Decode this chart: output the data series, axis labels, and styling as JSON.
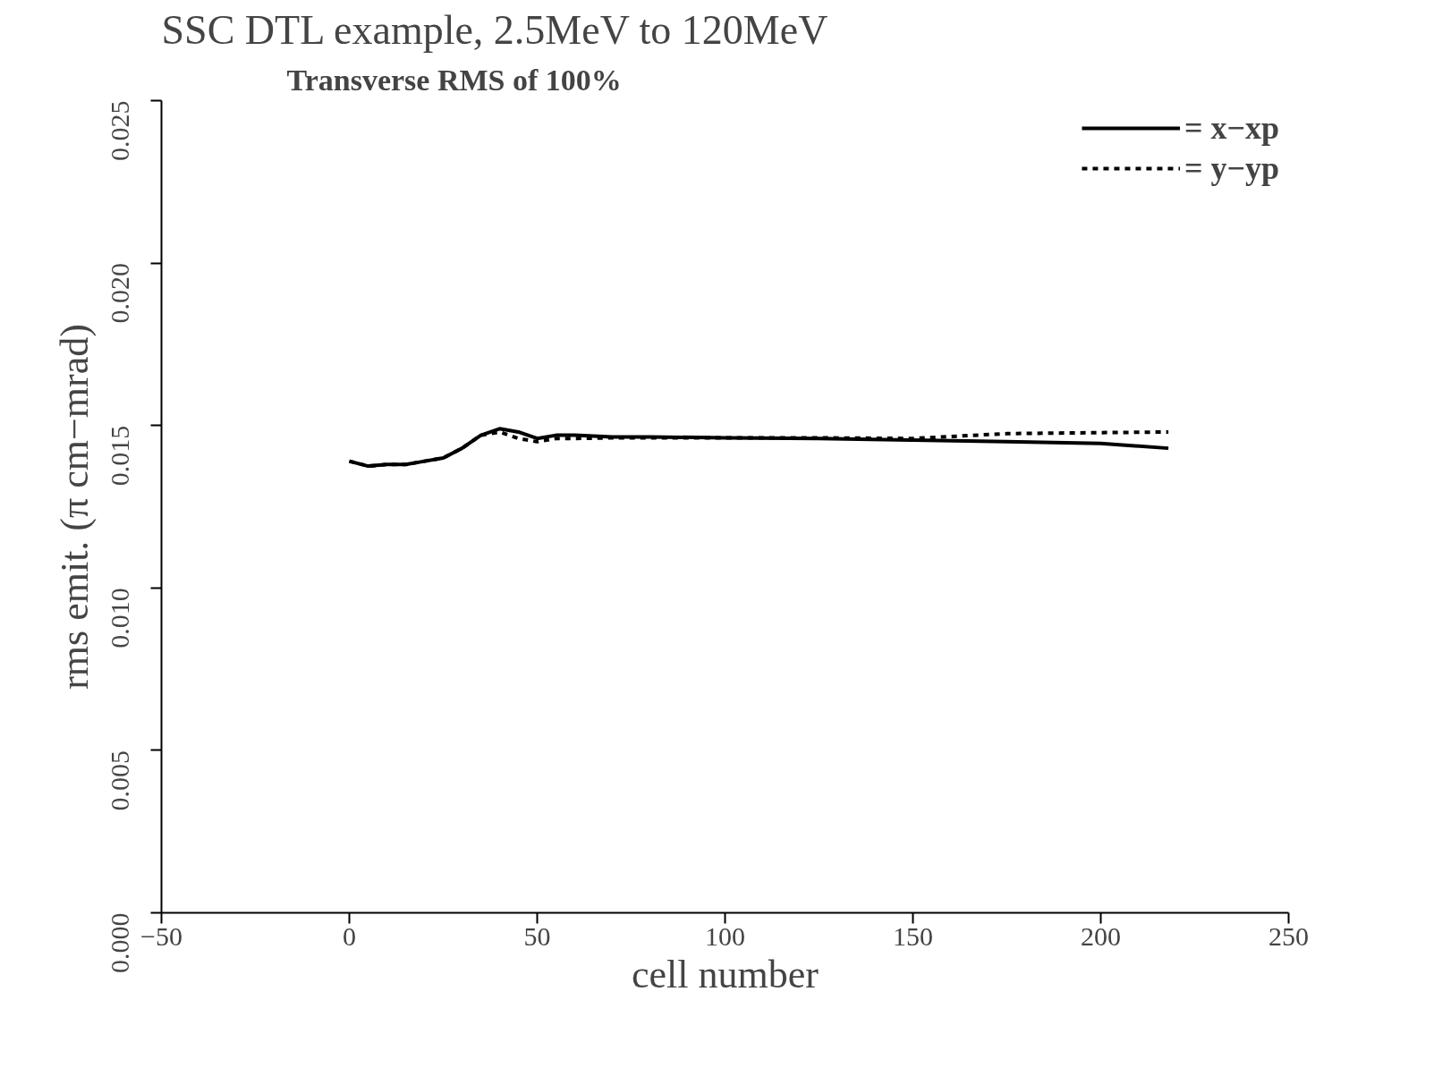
{
  "chart_data": {
    "type": "line",
    "title": "SSC DTL example, 2.5MeV to 120MeV",
    "subtitle": "Transverse RMS of 100%",
    "xlabel": "cell number",
    "ylabel": "rms emit. (π cm−mrad)",
    "xlim": [
      -50,
      250
    ],
    "xticks": [
      -50,
      0,
      50,
      100,
      150,
      200,
      250
    ],
    "ylim": [
      0,
      0.025
    ],
    "yticks": [
      {
        "value": 0,
        "label": "0.000"
      },
      {
        "value": 0.005,
        "label": "0.005"
      },
      {
        "value": 0.01,
        "label": "0.010"
      },
      {
        "value": 0.015,
        "label": "0.015"
      },
      {
        "value": 0.02,
        "label": "0.020"
      },
      {
        "value": 0.025,
        "label": "0.025"
      }
    ],
    "grid": false,
    "legend": "top right",
    "marker": "none",
    "series": [
      {
        "name": "= x−xp",
        "color": "#000000",
        "line_style": "solid",
        "x": [
          0,
          5,
          10,
          15,
          20,
          25,
          30,
          35,
          40,
          45,
          50,
          55,
          60,
          70,
          80,
          100,
          125,
          150,
          175,
          200,
          218
        ],
        "values": [
          0.0139,
          0.01375,
          0.0138,
          0.0138,
          0.0139,
          0.014,
          0.0143,
          0.0147,
          0.0149,
          0.0148,
          0.0146,
          0.0147,
          0.0147,
          0.01465,
          0.01465,
          0.01462,
          0.0146,
          0.01455,
          0.0145,
          0.01445,
          0.0143
        ]
      },
      {
        "name": "= y−yp",
        "color": "#000000",
        "line_style": "dashed",
        "x": [
          0,
          5,
          10,
          15,
          20,
          25,
          30,
          35,
          40,
          45,
          50,
          55,
          60,
          70,
          80,
          100,
          125,
          150,
          175,
          200,
          218
        ],
        "values": [
          0.0139,
          0.01375,
          0.0138,
          0.0138,
          0.0139,
          0.014,
          0.0143,
          0.0147,
          0.0148,
          0.0146,
          0.0145,
          0.0146,
          0.0146,
          0.01462,
          0.01462,
          0.01462,
          0.01462,
          0.0146,
          0.01475,
          0.01478,
          0.0148
        ]
      }
    ]
  }
}
